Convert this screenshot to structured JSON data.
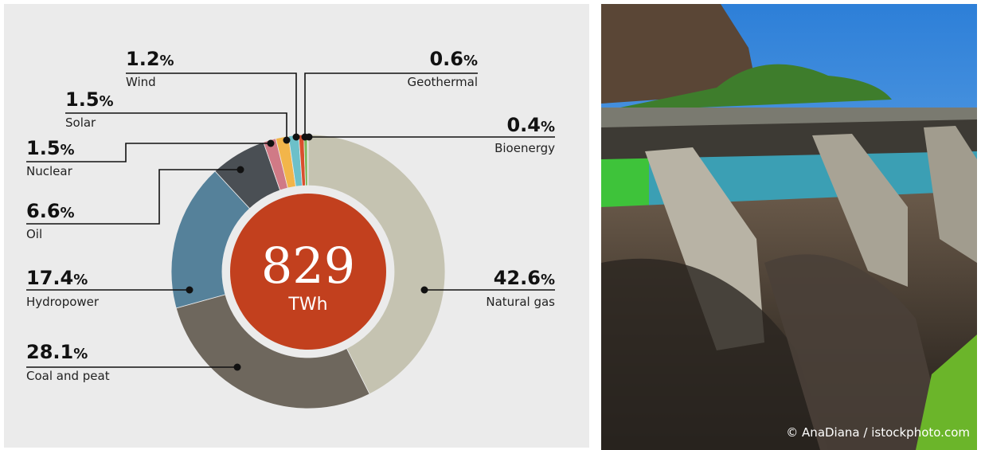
{
  "chart_data": {
    "type": "donut",
    "total": 829,
    "total_unit": "TWh",
    "categories": [
      "Natural gas",
      "Coal and peat",
      "Hydropower",
      "Oil",
      "Nuclear",
      "Solar",
      "Wind",
      "Geothermal",
      "Bioenergy"
    ],
    "values": [
      42.6,
      28.1,
      17.4,
      6.6,
      1.5,
      1.5,
      1.2,
      0.6,
      0.4
    ],
    "value_labels": [
      "42.6%",
      "28.1%",
      "17.4%",
      "6.6%",
      "1.5%",
      "1.5%",
      "1.2%",
      "0.6%",
      "0.4%"
    ],
    "colors": [
      "#c5c3b1",
      "#6e675d",
      "#55819a",
      "#4a4f54",
      "#d07a86",
      "#f2b54a",
      "#6cc0c9",
      "#d94f2d",
      "#7db85a"
    ]
  },
  "photo": {
    "credit": "© AnaDiana / istockphoto.com"
  }
}
